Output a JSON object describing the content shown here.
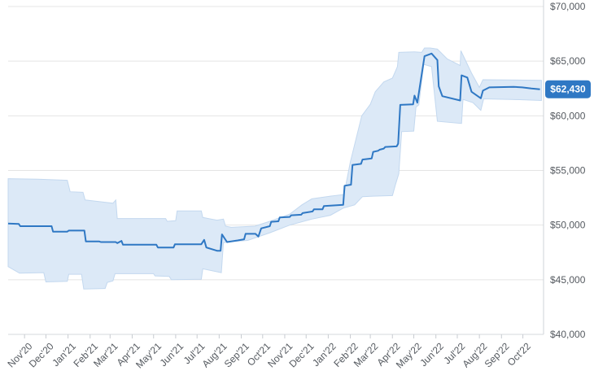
{
  "chart_data": {
    "type": "area",
    "title": "",
    "xlabel": "",
    "ylabel": "",
    "ylim": [
      40000,
      70000
    ],
    "xlim": [
      "2020-10-09",
      "2022-10-30"
    ],
    "y_ticks": [
      40000,
      45000,
      50000,
      55000,
      60000,
      65000,
      70000
    ],
    "y_tick_labels": [
      "$40,000",
      "$45,000",
      "$50,000",
      "$55,000",
      "$60,000",
      "$65,000",
      "$70,000"
    ],
    "x_ticks": [
      "2020-11-01",
      "2020-12-01",
      "2021-01-01",
      "2021-02-01",
      "2021-03-01",
      "2021-04-01",
      "2021-05-01",
      "2021-06-01",
      "2021-07-01",
      "2021-08-01",
      "2021-09-01",
      "2021-10-01",
      "2021-11-01",
      "2021-12-01",
      "2022-01-01",
      "2022-02-01",
      "2022-03-01",
      "2022-04-01",
      "2022-05-01",
      "2022-06-01",
      "2022-07-01",
      "2022-08-01",
      "2022-09-01",
      "2022-10-01"
    ],
    "x_tick_labels": [
      "Nov'20",
      "Dec'20",
      "Jan'21",
      "Feb'21",
      "Mar'21",
      "Apr'21",
      "May'21",
      "Jun'21",
      "Jul'21",
      "Aug'21",
      "Sep'21",
      "Oct'21",
      "Nov'21",
      "Dec'21",
      "Jan'22",
      "Feb'22",
      "Mar'22",
      "Apr'22",
      "May'22",
      "Jun'22",
      "Jul'22",
      "Aug'22",
      "Sep'22",
      "Oct'22"
    ],
    "grid": true,
    "y_axis_position": "right",
    "current_value_label": "$62,430",
    "colors": {
      "line": "#2f78c4",
      "band": "#dce9f7",
      "band_edge": "#c3d8ef",
      "badge": "#2f78c4",
      "grid": "#e4e4e4"
    },
    "series": [
      {
        "values": [
          [
            "2020-10-09",
            50150
          ],
          [
            "2020-10-24",
            50100
          ],
          [
            "2020-10-26",
            49900
          ],
          [
            "2020-12-09",
            49900
          ],
          [
            "2020-12-11",
            49400
          ],
          [
            "2020-12-31",
            49400
          ],
          [
            "2021-01-02",
            49500
          ],
          [
            "2021-01-24",
            49500
          ],
          [
            "2021-01-26",
            48500
          ],
          [
            "2021-02-14",
            48500
          ],
          [
            "2021-02-16",
            48450
          ],
          [
            "2021-03-09",
            48450
          ],
          [
            "2021-03-11",
            48350
          ],
          [
            "2021-03-17",
            48550
          ],
          [
            "2021-03-19",
            48200
          ],
          [
            "2021-05-05",
            48200
          ],
          [
            "2021-05-07",
            47950
          ],
          [
            "2021-05-29",
            47950
          ],
          [
            "2021-05-31",
            48250
          ],
          [
            "2021-07-07",
            48250
          ],
          [
            "2021-07-11",
            48650
          ],
          [
            "2021-07-14",
            47950
          ],
          [
            "2021-07-29",
            47650
          ],
          [
            "2021-08-03",
            47650
          ],
          [
            "2021-08-05",
            49150
          ],
          [
            "2021-08-12",
            48450
          ],
          [
            "2021-08-27",
            48600
          ],
          [
            "2021-09-05",
            48700
          ],
          [
            "2021-09-07",
            49200
          ],
          [
            "2021-09-21",
            49200
          ],
          [
            "2021-09-25",
            48950
          ],
          [
            "2021-09-29",
            49700
          ],
          [
            "2021-10-11",
            49900
          ],
          [
            "2021-10-13",
            50300
          ],
          [
            "2021-10-23",
            50350
          ],
          [
            "2021-10-25",
            50700
          ],
          [
            "2021-11-08",
            50750
          ],
          [
            "2021-11-10",
            50900
          ],
          [
            "2021-11-24",
            50950
          ],
          [
            "2021-11-26",
            51100
          ],
          [
            "2021-12-10",
            51250
          ],
          [
            "2021-12-12",
            51450
          ],
          [
            "2021-12-24",
            51450
          ],
          [
            "2021-12-26",
            51750
          ],
          [
            "2022-01-22",
            51850
          ],
          [
            "2022-01-24",
            53600
          ],
          [
            "2022-02-02",
            53700
          ],
          [
            "2022-02-04",
            55500
          ],
          [
            "2022-02-16",
            55600
          ],
          [
            "2022-02-18",
            56000
          ],
          [
            "2022-03-03",
            56100
          ],
          [
            "2022-03-05",
            56700
          ],
          [
            "2022-03-12",
            56800
          ],
          [
            "2022-03-14",
            56900
          ],
          [
            "2022-03-20",
            57000
          ],
          [
            "2022-03-22",
            57150
          ],
          [
            "2022-04-07",
            57200
          ],
          [
            "2022-04-09",
            57450
          ],
          [
            "2022-04-12",
            61000
          ],
          [
            "2022-04-30",
            61050
          ],
          [
            "2022-05-02",
            61850
          ],
          [
            "2022-05-06",
            61200
          ],
          [
            "2022-05-16",
            65450
          ],
          [
            "2022-05-26",
            65700
          ],
          [
            "2022-06-03",
            65100
          ],
          [
            "2022-06-05",
            62700
          ],
          [
            "2022-06-10",
            61800
          ],
          [
            "2022-07-05",
            61400
          ],
          [
            "2022-07-07",
            63700
          ],
          [
            "2022-07-15",
            63500
          ],
          [
            "2022-07-21",
            62200
          ],
          [
            "2022-08-03",
            61600
          ],
          [
            "2022-08-06",
            62300
          ],
          [
            "2022-08-15",
            62600
          ],
          [
            "2022-09-18",
            62650
          ],
          [
            "2022-09-30",
            62600
          ],
          [
            "2022-10-13",
            62500
          ],
          [
            "2022-10-25",
            62430
          ]
        ],
        "lower": [
          [
            "2020-10-09",
            46200
          ],
          [
            "2020-10-25",
            45600
          ],
          [
            "2020-11-28",
            45650
          ],
          [
            "2020-12-01",
            44800
          ],
          [
            "2020-12-31",
            44850
          ],
          [
            "2021-01-02",
            45500
          ],
          [
            "2021-01-20",
            45500
          ],
          [
            "2021-01-23",
            44150
          ],
          [
            "2021-02-22",
            44200
          ],
          [
            "2021-02-25",
            44750
          ],
          [
            "2021-03-05",
            44900
          ],
          [
            "2021-03-08",
            45550
          ],
          [
            "2021-05-01",
            45550
          ],
          [
            "2021-05-03",
            45350
          ],
          [
            "2021-05-23",
            45300
          ],
          [
            "2021-05-26",
            45000
          ],
          [
            "2021-07-07",
            45050
          ],
          [
            "2021-07-09",
            46000
          ],
          [
            "2021-08-04",
            45650
          ],
          [
            "2021-08-07",
            48400
          ],
          [
            "2021-08-20",
            48500
          ],
          [
            "2021-09-10",
            48600
          ],
          [
            "2021-10-11",
            49300
          ],
          [
            "2021-11-08",
            50000
          ],
          [
            "2021-12-09",
            50550
          ],
          [
            "2022-01-04",
            50900
          ],
          [
            "2022-01-22",
            51550
          ],
          [
            "2022-02-07",
            51850
          ],
          [
            "2022-02-18",
            52600
          ],
          [
            "2022-03-05",
            52650
          ],
          [
            "2022-04-01",
            52700
          ],
          [
            "2022-04-05",
            53650
          ],
          [
            "2022-04-10",
            54700
          ],
          [
            "2022-04-14",
            58550
          ],
          [
            "2022-05-01",
            58600
          ],
          [
            "2022-05-04",
            60800
          ],
          [
            "2022-05-08",
            61000
          ],
          [
            "2022-05-15",
            64700
          ],
          [
            "2022-05-26",
            64500
          ],
          [
            "2022-06-03",
            59500
          ],
          [
            "2022-07-07",
            59300
          ],
          [
            "2022-07-09",
            61500
          ],
          [
            "2022-07-23",
            61200
          ],
          [
            "2022-08-03",
            60500
          ],
          [
            "2022-08-07",
            61550
          ],
          [
            "2022-09-15",
            61500
          ],
          [
            "2022-10-27",
            61400
          ]
        ],
        "upper": [
          [
            "2020-10-09",
            54250
          ],
          [
            "2020-11-20",
            54200
          ],
          [
            "2020-12-31",
            54100
          ],
          [
            "2021-01-04",
            53050
          ],
          [
            "2021-01-22",
            53000
          ],
          [
            "2021-01-25",
            52300
          ],
          [
            "2021-03-05",
            52000
          ],
          [
            "2021-03-09",
            52300
          ],
          [
            "2021-03-11",
            50600
          ],
          [
            "2021-05-18",
            50600
          ],
          [
            "2021-05-20",
            50350
          ],
          [
            "2021-06-01",
            50400
          ],
          [
            "2021-06-03",
            51300
          ],
          [
            "2021-07-07",
            51300
          ],
          [
            "2021-07-09",
            50700
          ],
          [
            "2021-07-29",
            50450
          ],
          [
            "2021-08-07",
            50550
          ],
          [
            "2021-08-10",
            49900
          ],
          [
            "2021-08-18",
            49800
          ],
          [
            "2021-09-20",
            49900
          ],
          [
            "2021-10-11",
            50350
          ],
          [
            "2021-11-08",
            51000
          ],
          [
            "2021-11-25",
            51850
          ],
          [
            "2021-12-09",
            52400
          ],
          [
            "2022-01-04",
            52650
          ],
          [
            "2022-01-23",
            52800
          ],
          [
            "2022-02-01",
            55800
          ],
          [
            "2022-02-17",
            60000
          ],
          [
            "2022-03-01",
            61050
          ],
          [
            "2022-03-08",
            62200
          ],
          [
            "2022-03-20",
            63100
          ],
          [
            "2022-04-01",
            63450
          ],
          [
            "2022-04-08",
            64500
          ],
          [
            "2022-04-10",
            65800
          ],
          [
            "2022-05-02",
            65850
          ],
          [
            "2022-05-12",
            65800
          ],
          [
            "2022-05-16",
            66200
          ],
          [
            "2022-05-24",
            66200
          ],
          [
            "2022-06-03",
            66100
          ],
          [
            "2022-06-17",
            65200
          ],
          [
            "2022-07-05",
            64600
          ],
          [
            "2022-07-06",
            65950
          ],
          [
            "2022-07-21",
            63900
          ],
          [
            "2022-08-01",
            62600
          ],
          [
            "2022-08-06",
            63300
          ],
          [
            "2022-10-27",
            63250
          ]
        ]
      }
    ]
  }
}
